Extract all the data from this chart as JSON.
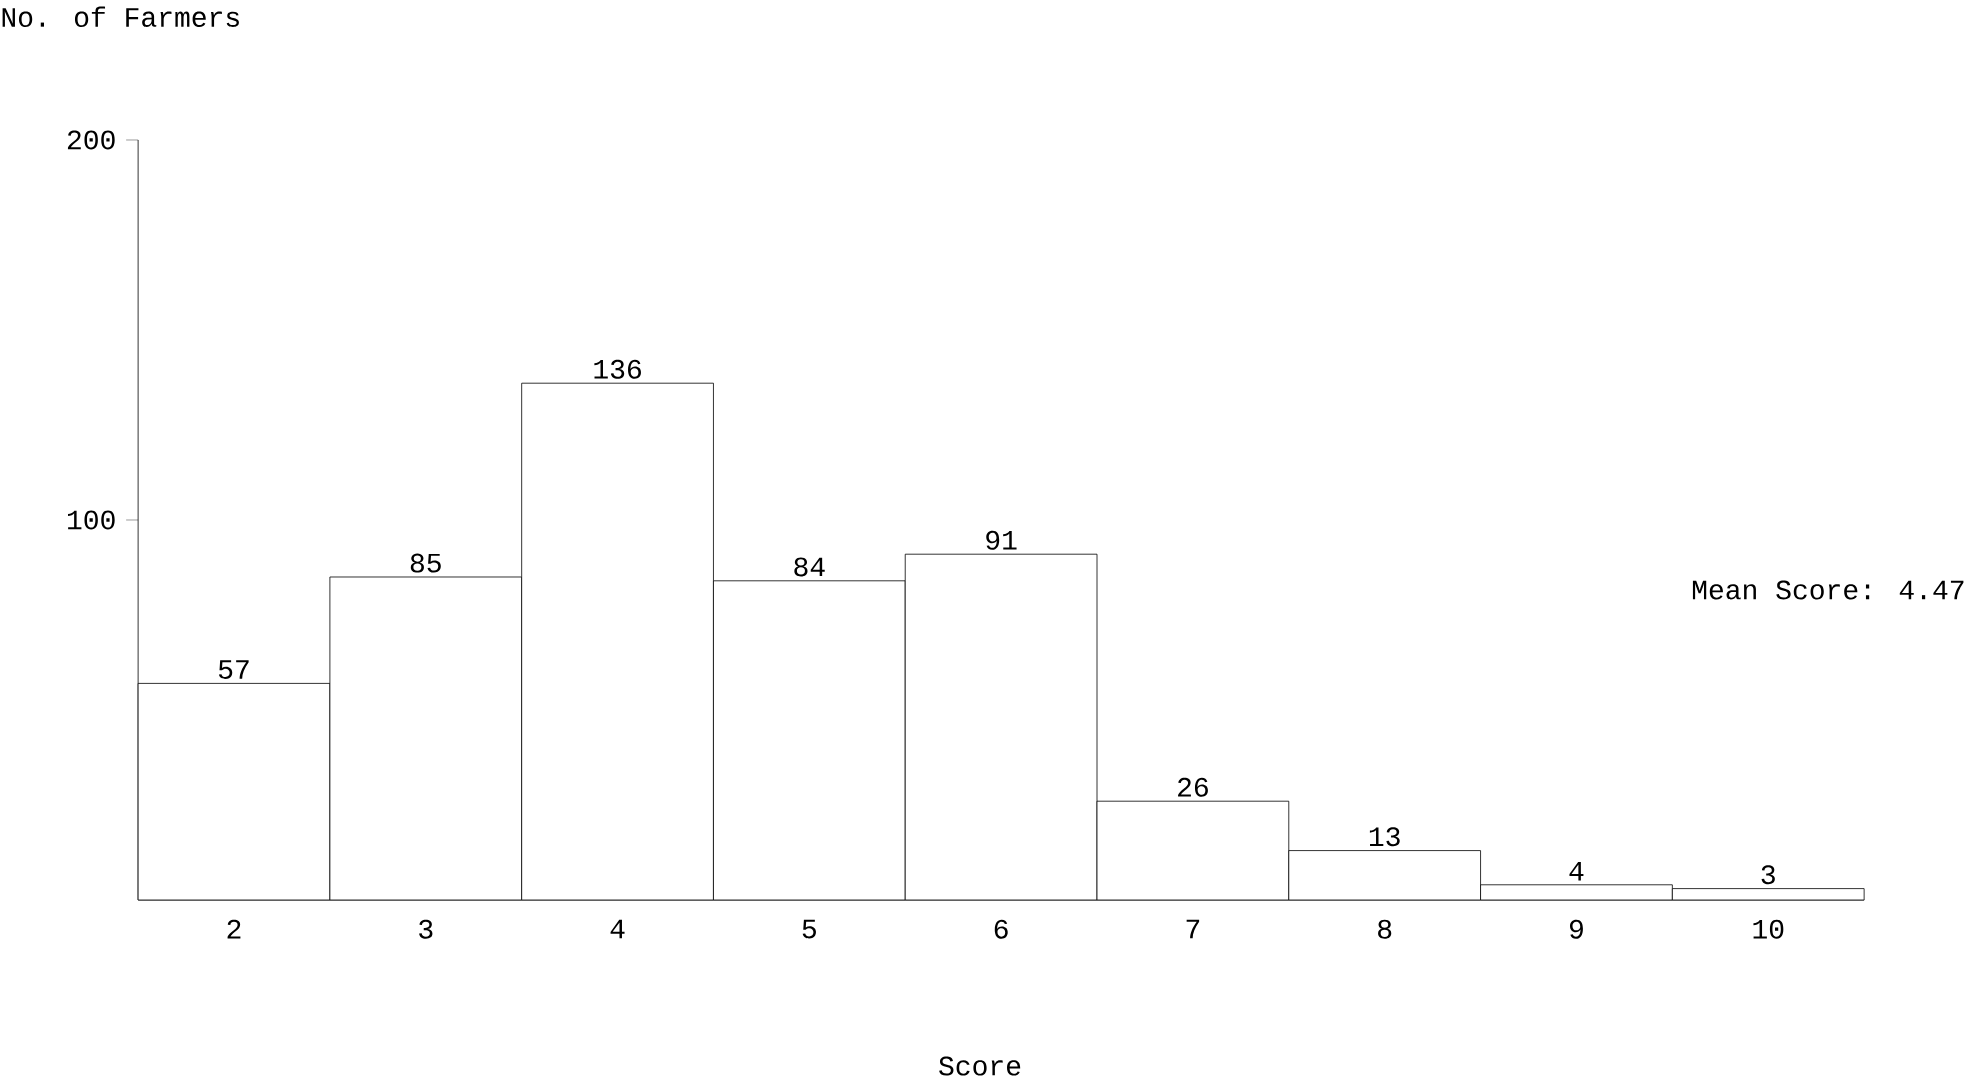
{
  "chart_data": {
    "type": "bar",
    "xlabel": "Score",
    "ylabel": "No. of Farmers",
    "categories": [
      "2",
      "3",
      "4",
      "5",
      "6",
      "7",
      "8",
      "9",
      "10"
    ],
    "values": [
      57,
      85,
      136,
      84,
      91,
      26,
      13,
      4,
      3
    ],
    "color": "#ffffff",
    "data_labels": true,
    "ylim": [
      0,
      200
    ],
    "yticks": [
      100,
      200
    ],
    "annotations": [
      "Mean Score:  4.47"
    ]
  }
}
